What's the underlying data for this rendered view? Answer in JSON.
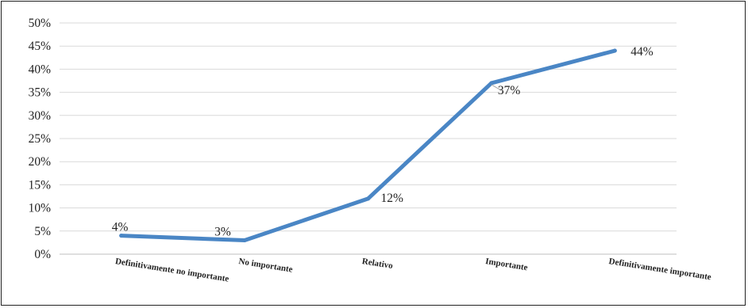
{
  "chart_data": {
    "type": "line",
    "title": "",
    "xlabel": "",
    "ylabel": "",
    "categories": [
      "Definitivamente no importante",
      "No importante",
      "Relativo",
      "Importante",
      "Definitivamente importante"
    ],
    "series": [
      {
        "values": [
          4,
          3,
          12,
          37,
          44
        ],
        "data_labels": [
          "4%",
          "3%",
          "12%",
          "37%",
          "44%"
        ]
      }
    ],
    "ylim": [
      0,
      50
    ],
    "yticks": [
      {
        "value": 0,
        "label": "0%"
      },
      {
        "value": 5,
        "label": "5%"
      },
      {
        "value": 10,
        "label": "10%"
      },
      {
        "value": 15,
        "label": "15%"
      },
      {
        "value": 20,
        "label": "20%"
      },
      {
        "value": 25,
        "label": "25%"
      },
      {
        "value": 30,
        "label": "30%"
      },
      {
        "value": 35,
        "label": "35%"
      },
      {
        "value": 40,
        "label": "40%"
      },
      {
        "value": 45,
        "label": "45%"
      },
      {
        "value": 50,
        "label": "50%"
      }
    ],
    "grid": true,
    "legend": "none",
    "colors": {
      "line": "#4a86c5",
      "grid": "#d9d9d9",
      "axis": "#bfbfbf"
    }
  }
}
